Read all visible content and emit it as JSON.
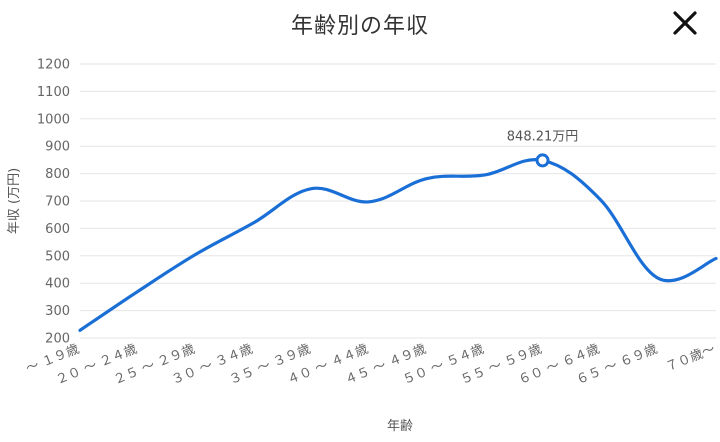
{
  "header": {
    "title": "年齢別の年収",
    "close_icon": "close-icon"
  },
  "chart_data": {
    "type": "line",
    "title": "年齢別の年収",
    "xlabel": "年齢",
    "ylabel": "年収 (万円)",
    "ylim": [
      200,
      1200
    ],
    "yticks": [
      200,
      300,
      400,
      500,
      600,
      700,
      800,
      900,
      1000,
      1100,
      1200
    ],
    "categories": [
      "〜 １９歳",
      "２０ 〜 ２４歳",
      "２５ 〜 ２９歳",
      "３０ 〜 ３４歳",
      "３５ 〜 ３９歳",
      "４０ 〜 ４４歳",
      "４５ 〜 ４９歳",
      "５０ 〜 ５４歳",
      "５５ 〜 ５９歳",
      "６０ 〜 ６４歳",
      "６５ 〜 ６９歳",
      "７０歳〜"
    ],
    "series": [
      {
        "values": [
          228,
          370,
          505,
          620,
          745,
          697,
          782,
          795,
          848.21,
          705,
          418,
          490
        ]
      }
    ],
    "highlight": {
      "index": 8,
      "label": "848.21万円"
    },
    "grid": true,
    "line_color": "#1a6fd6"
  }
}
